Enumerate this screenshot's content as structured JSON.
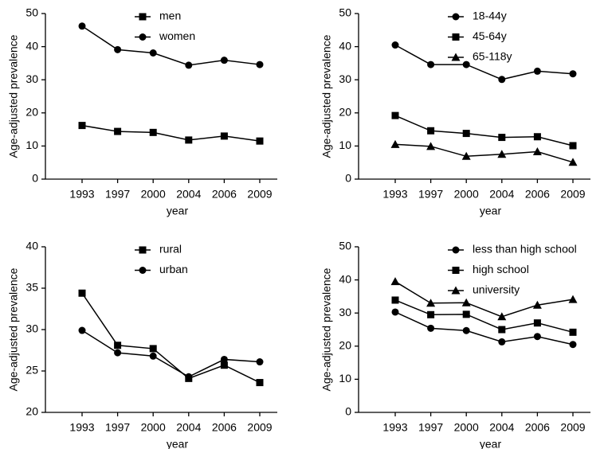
{
  "chart_data": [
    {
      "type": "line",
      "x_label": "year",
      "y_label": "Age-adjusted prevalence",
      "categories": [
        "1993",
        "1997",
        "2000",
        "2004",
        "2006",
        "2009"
      ],
      "ylim": [
        0,
        50
      ],
      "yticks": [
        0,
        10,
        20,
        30,
        40,
        50
      ],
      "series": [
        {
          "name": "men",
          "color": "#000000",
          "marker": "square",
          "values": [
            16.2,
            14.4,
            14.1,
            11.8,
            13.0,
            11.5
          ]
        },
        {
          "name": "women",
          "color": "#000000",
          "marker": "circle",
          "values": [
            46.2,
            39.1,
            38.1,
            34.4,
            35.9,
            34.6
          ]
        }
      ]
    },
    {
      "type": "line",
      "x_label": "year",
      "y_label": "Age-adjusted prevalence",
      "categories": [
        "1993",
        "1997",
        "2000",
        "2004",
        "2006",
        "2009"
      ],
      "ylim": [
        0,
        50
      ],
      "yticks": [
        0,
        10,
        20,
        30,
        40,
        50
      ],
      "series": [
        {
          "name": "18-44y",
          "color": "#000000",
          "marker": "circle",
          "values": [
            40.5,
            34.6,
            34.6,
            30.1,
            32.6,
            31.8
          ]
        },
        {
          "name": "45-64y",
          "color": "#000000",
          "marker": "square",
          "values": [
            19.2,
            14.6,
            13.8,
            12.6,
            12.8,
            10.1
          ]
        },
        {
          "name": "65-118y",
          "color": "#000000",
          "marker": "triangle",
          "values": [
            10.5,
            9.9,
            6.9,
            7.5,
            8.3,
            5.1
          ]
        }
      ]
    },
    {
      "type": "line",
      "x_label": "year",
      "y_label": "Age-adjusted prevalence",
      "categories": [
        "1993",
        "1997",
        "2000",
        "2004",
        "2006",
        "2009"
      ],
      "ylim": [
        20,
        40
      ],
      "yticks": [
        20,
        25,
        30,
        35,
        40
      ],
      "series": [
        {
          "name": "rural",
          "color": "#000000",
          "marker": "square",
          "values": [
            34.4,
            28.1,
            27.7,
            24.1,
            25.7,
            23.6
          ]
        },
        {
          "name": "urban",
          "color": "#000000",
          "marker": "circle",
          "values": [
            29.9,
            27.2,
            26.8,
            24.3,
            26.4,
            26.1
          ]
        }
      ]
    },
    {
      "type": "line",
      "x_label": "year",
      "y_label": "Age-adjusted prevalence",
      "categories": [
        "1993",
        "1997",
        "2000",
        "2004",
        "2006",
        "2009"
      ],
      "ylim": [
        0,
        50
      ],
      "yticks": [
        0,
        10,
        20,
        30,
        40,
        50
      ],
      "series": [
        {
          "name": "less than high school",
          "color": "#000000",
          "marker": "circle",
          "values": [
            30.3,
            25.4,
            24.7,
            21.3,
            22.9,
            20.5
          ]
        },
        {
          "name": "high school",
          "color": "#000000",
          "marker": "square",
          "values": [
            33.9,
            29.5,
            29.6,
            25.0,
            27.0,
            24.2
          ]
        },
        {
          "name": "university",
          "color": "#000000",
          "marker": "triangle",
          "values": [
            39.5,
            33.0,
            33.1,
            28.9,
            32.4,
            34.1
          ]
        }
      ]
    }
  ]
}
